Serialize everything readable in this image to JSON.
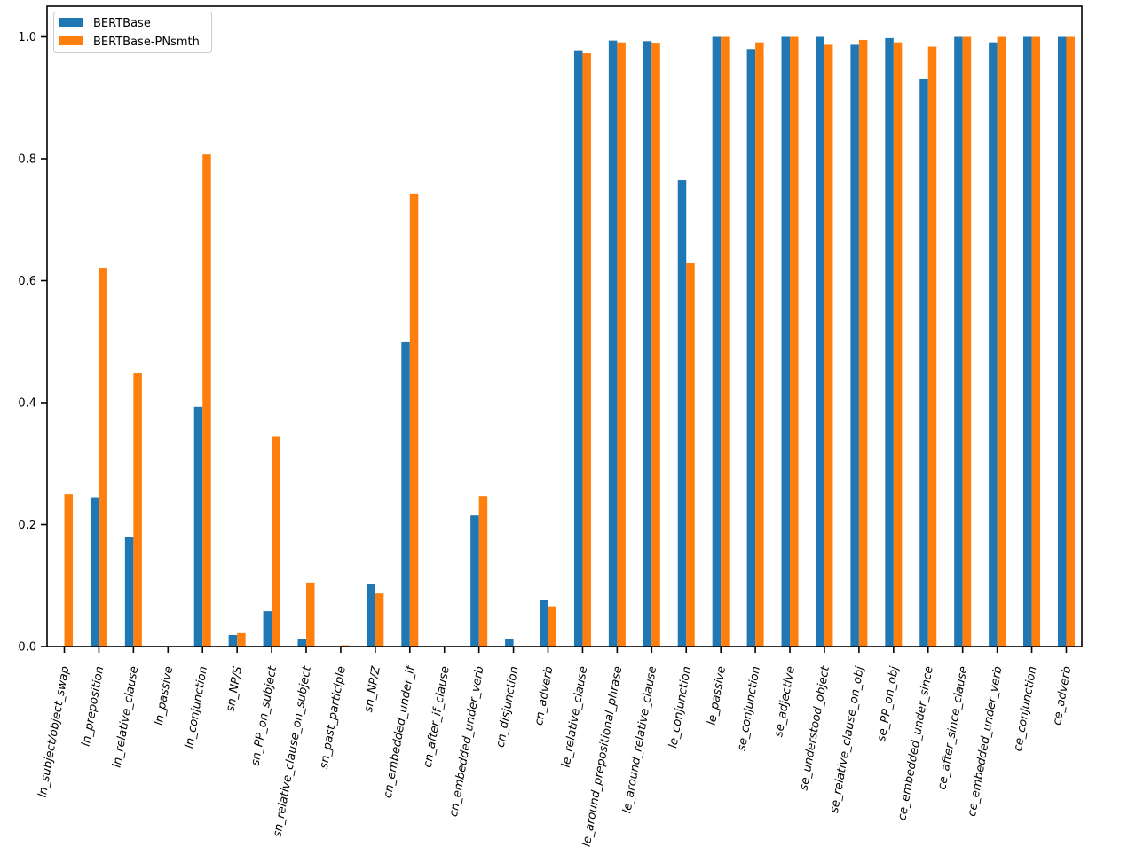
{
  "chart_data": {
    "type": "bar",
    "title": "",
    "xlabel": "",
    "ylabel": "",
    "ylim": [
      0,
      1.0
    ],
    "yticks": [
      0.0,
      0.2,
      0.4,
      0.6,
      0.8,
      1.0
    ],
    "ytick_labels": [
      "0.0",
      "0.2",
      "0.4",
      "0.6",
      "0.8",
      "1.0"
    ],
    "grid": false,
    "legend_position": "top-left",
    "categories": [
      "ln_subject/object_swap",
      "ln_preposition",
      "ln_relative_clause",
      "ln_passive",
      "ln_conjunction",
      "sn_NP/S",
      "sn_PP_on_subject",
      "sn_relative_clause_on_subject",
      "sn_past_participle",
      "sn_NP/Z",
      "cn_embedded_under_if",
      "cn_after_if_clause",
      "cn_embedded_under_verb",
      "cn_disjunction",
      "cn_adverb",
      "le_relative_clause",
      "le_around_prepositional_phrase",
      "le_around_relative_clause",
      "le_conjunction",
      "le_passive",
      "se_conjunction",
      "se_adjective",
      "se_understood_object",
      "se_relative_clause_on_obj",
      "se_PP_on_obj",
      "ce_embedded_under_since",
      "ce_after_since_clause",
      "ce_embedded_under_verb",
      "ce_conjunction",
      "ce_adverb"
    ],
    "series": [
      {
        "name": "BERTBase",
        "color": "#1f77b4",
        "values": [
          0.0,
          0.245,
          0.18,
          0.0,
          0.393,
          0.019,
          0.058,
          0.012,
          0.0,
          0.102,
          0.499,
          0.0,
          0.215,
          0.012,
          0.077,
          0.978,
          0.994,
          0.993,
          0.765,
          1.0,
          0.98,
          1.0,
          1.0,
          0.987,
          0.998,
          0.931,
          1.0,
          0.991,
          1.0,
          1.0
        ]
      },
      {
        "name": "BERTBase-PNsmth",
        "color": "#ff7f0e",
        "values": [
          0.25,
          0.621,
          0.448,
          0.0,
          0.807,
          0.022,
          0.344,
          0.105,
          0.002,
          0.087,
          0.742,
          0.0,
          0.247,
          0.0,
          0.066,
          0.973,
          0.991,
          0.989,
          0.629,
          1.0,
          0.991,
          1.0,
          0.987,
          0.995,
          0.991,
          0.984,
          1.0,
          1.0,
          1.0,
          1.0
        ]
      }
    ]
  }
}
